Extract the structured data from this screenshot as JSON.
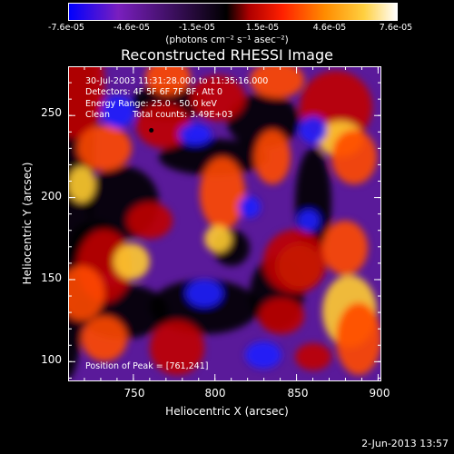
{
  "colorbar": {
    "tick_labels": [
      "-7.6e-05",
      "-4.6e-05",
      "-1.5e-05",
      "1.5e-05",
      "4.6e-05",
      "7.6e-05"
    ],
    "units": "(photons cm⁻² s⁻¹ asec⁻²)",
    "colors": [
      "#0000ff",
      "#7a1fbf",
      "#000000",
      "#b00000",
      "#ff2000",
      "#ff8c00",
      "#ffd040",
      "#ffffff"
    ]
  },
  "chart_data": {
    "type": "heatmap",
    "title": "Reconstructed RHESSI Image",
    "xlabel": "Heliocentric X (arcsec)",
    "ylabel": "Heliocentric Y (arcsec)",
    "xlim": [
      710,
      902
    ],
    "ylim": [
      88,
      280
    ],
    "x_ticks": [
      "750",
      "800",
      "850",
      "900"
    ],
    "y_ticks": [
      "100",
      "150",
      "200",
      "250"
    ],
    "value_range": [
      -7.6e-05,
      7.6e-05
    ],
    "peak_position": [
      761,
      241
    ],
    "annotations": {
      "time": "30-Jul-2003 11:31:28.000 to 11:35:16.000",
      "detectors": "Detectors: 4F 5F 6F 7F 8F, Att 0",
      "energy": "Energy Range: 25.0 - 50.0 keV",
      "clean": "Clean",
      "counts": "Total counts: 3.49E+03",
      "peak": "Position of Peak = [761,241]"
    }
  },
  "footer": {
    "date": "2-Jun-2013 13:57"
  }
}
